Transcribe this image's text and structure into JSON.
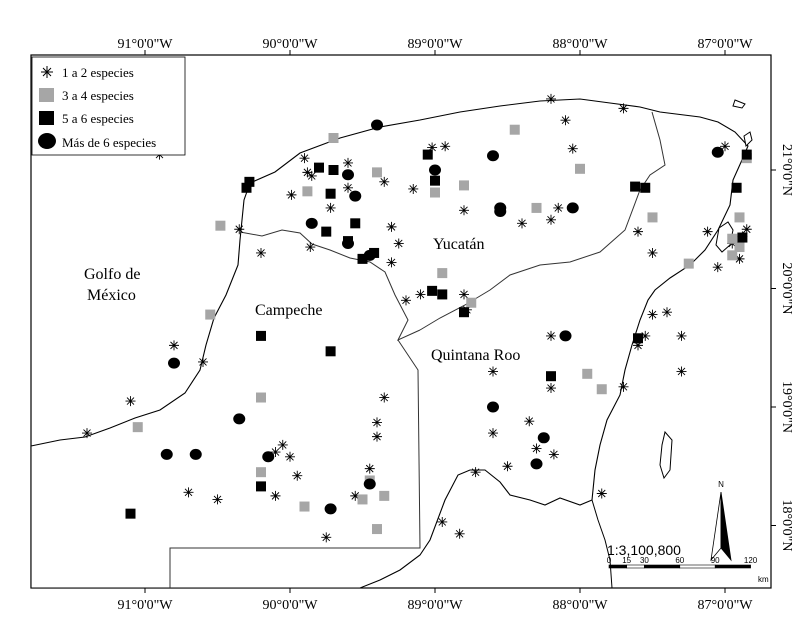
{
  "map": {
    "lon_labels": [
      {
        "lon": -91,
        "text": "91°0'0\"W"
      },
      {
        "lon": -90,
        "text": "90°0'0\"W"
      },
      {
        "lon": -89,
        "text": "89°0'0\"W"
      },
      {
        "lon": -88,
        "text": "88°0'0\"W"
      },
      {
        "lon": -87,
        "text": "87°0'0\"W"
      }
    ],
    "lat_labels": [
      {
        "lat": 21,
        "text": "21°0'0\"N"
      },
      {
        "lat": 20,
        "text": "20°0'0\"N"
      },
      {
        "lat": 19,
        "text": "19°0'0\"N"
      },
      {
        "lat": 18,
        "text": "18°0'0\"N"
      }
    ],
    "regions": {
      "gulf_line1": "Golfo de",
      "gulf_line2": "México",
      "campeche": "Campeche",
      "yucatan": "Yucatán",
      "quintana_roo": "Quintana Roo"
    },
    "legend": [
      {
        "key": "star",
        "label": "1 a 2 especies"
      },
      {
        "key": "grey",
        "label": "3 a 4 especies"
      },
      {
        "key": "black",
        "label": "5 a 6 especies"
      },
      {
        "key": "circle",
        "label": "Más de 6 especies"
      }
    ],
    "scale": {
      "ratio": "1:3,100,800",
      "ticks": [
        "0",
        "15",
        "30",
        "60",
        "90",
        "120"
      ],
      "unit": "km"
    },
    "north_label": "N",
    "colors": {
      "grey_marker": "#a6a6a6",
      "black_marker": "#000000",
      "coast": "#000000",
      "state_border": "#333333"
    },
    "sites": {
      "star": [
        [
          -90.9,
          21.13
        ],
        [
          -89.9,
          21.1
        ],
        [
          -89.88,
          20.98
        ],
        [
          -89.6,
          21.06
        ],
        [
          -89.85,
          20.95
        ],
        [
          -89.6,
          20.85
        ],
        [
          -89.35,
          20.9
        ],
        [
          -88.93,
          21.2
        ],
        [
          -88.05,
          21.18
        ],
        [
          -87.7,
          21.52
        ],
        [
          -88.2,
          21.6
        ],
        [
          -88.1,
          21.42
        ],
        [
          -89.02,
          21.19
        ],
        [
          -89.15,
          20.84
        ],
        [
          -88.8,
          20.66
        ],
        [
          -88.15,
          20.68
        ],
        [
          -88.2,
          20.58
        ],
        [
          -88.4,
          20.55
        ],
        [
          -89.99,
          20.79
        ],
        [
          -89.72,
          20.68
        ],
        [
          -89.3,
          20.52
        ],
        [
          -89.25,
          20.38
        ],
        [
          -89.86,
          20.35
        ],
        [
          -90.35,
          20.5
        ],
        [
          -90.2,
          20.3
        ],
        [
          -87.12,
          20.48
        ],
        [
          -86.95,
          20.38
        ],
        [
          -86.88,
          20.44
        ],
        [
          -86.85,
          20.5
        ],
        [
          -86.9,
          20.25
        ],
        [
          -87.6,
          20.48
        ],
        [
          -87.05,
          20.18
        ],
        [
          -88.8,
          19.95
        ],
        [
          -88.78,
          19.82
        ],
        [
          -89.2,
          19.9
        ],
        [
          -89.1,
          19.95
        ],
        [
          -87.55,
          19.6
        ],
        [
          -87.5,
          19.78
        ],
        [
          -87.4,
          19.8
        ],
        [
          -87.3,
          19.6
        ],
        [
          -87.6,
          19.52
        ],
        [
          -87.3,
          19.3
        ],
        [
          -87.7,
          19.17
        ],
        [
          -88.2,
          19.16
        ],
        [
          -88.2,
          19.6
        ],
        [
          -88.6,
          19.3
        ],
        [
          -88.35,
          18.88
        ],
        [
          -88.6,
          18.78
        ],
        [
          -88.3,
          18.65
        ],
        [
          -88.5,
          18.5
        ],
        [
          -88.72,
          18.45
        ],
        [
          -88.18,
          18.6
        ],
        [
          -87.85,
          18.27
        ],
        [
          -88.95,
          18.03
        ],
        [
          -88.83,
          17.93
        ],
        [
          -89.35,
          19.08
        ],
        [
          -89.4,
          18.87
        ],
        [
          -89.4,
          18.75
        ],
        [
          -89.45,
          18.48
        ],
        [
          -89.55,
          18.25
        ],
        [
          -89.75,
          17.9
        ],
        [
          -90.0,
          18.58
        ],
        [
          -90.1,
          18.62
        ],
        [
          -90.05,
          18.68
        ],
        [
          -90.1,
          18.25
        ],
        [
          -90.7,
          18.28
        ],
        [
          -90.5,
          18.22
        ],
        [
          -91.4,
          18.78
        ],
        [
          -91.1,
          19.05
        ],
        [
          -90.6,
          19.38
        ],
        [
          -90.8,
          19.52
        ],
        [
          -89.95,
          18.42
        ],
        [
          -89.3,
          20.22
        ],
        [
          -87.0,
          21.2
        ],
        [
          -87.5,
          20.3
        ]
      ],
      "grey": [
        [
          -89.7,
          21.27
        ],
        [
          -88.45,
          21.34
        ],
        [
          -89.4,
          20.98
        ],
        [
          -89.0,
          20.81
        ],
        [
          -88.8,
          20.87
        ],
        [
          -88.0,
          21.01
        ],
        [
          -88.3,
          20.68
        ],
        [
          -88.95,
          20.13
        ],
        [
          -90.48,
          20.53
        ],
        [
          -87.25,
          20.21
        ],
        [
          -86.9,
          20.6
        ],
        [
          -86.85,
          21.1
        ],
        [
          -86.95,
          20.42
        ],
        [
          -86.9,
          20.35
        ],
        [
          -86.95,
          20.28
        ],
        [
          -87.5,
          20.6
        ],
        [
          -87.95,
          19.28
        ],
        [
          -87.85,
          19.15
        ],
        [
          -88.75,
          19.88
        ],
        [
          -89.88,
          20.82
        ],
        [
          -90.55,
          19.78
        ],
        [
          -91.05,
          18.83
        ],
        [
          -90.2,
          19.08
        ],
        [
          -90.2,
          18.45
        ],
        [
          -89.9,
          18.16
        ],
        [
          -89.45,
          18.38
        ],
        [
          -89.35,
          18.25
        ],
        [
          -89.5,
          18.22
        ],
        [
          -89.4,
          17.97
        ]
      ],
      "black": [
        [
          -90.28,
          20.9
        ],
        [
          -90.3,
          20.85
        ],
        [
          -89.7,
          21.0
        ],
        [
          -89.75,
          20.48
        ],
        [
          -89.6,
          20.4
        ],
        [
          -89.42,
          20.3
        ],
        [
          -89.5,
          20.25
        ],
        [
          -89.55,
          20.55
        ],
        [
          -89.05,
          21.13
        ],
        [
          -89.0,
          20.91
        ],
        [
          -88.95,
          19.95
        ],
        [
          -88.8,
          19.8
        ],
        [
          -89.02,
          19.98
        ],
        [
          -87.62,
          20.86
        ],
        [
          -87.55,
          20.85
        ],
        [
          -86.92,
          20.85
        ],
        [
          -86.85,
          21.13
        ],
        [
          -86.88,
          20.43
        ],
        [
          -87.6,
          19.58
        ],
        [
          -88.2,
          19.26
        ],
        [
          -89.72,
          20.8
        ],
        [
          -90.2,
          19.6
        ],
        [
          -89.72,
          19.47
        ],
        [
          -90.2,
          18.33
        ],
        [
          -91.1,
          18.1
        ],
        [
          -89.8,
          21.02
        ]
      ],
      "circle": [
        [
          -89.4,
          21.38
        ],
        [
          -88.6,
          21.12
        ],
        [
          -88.55,
          20.68
        ],
        [
          -88.55,
          20.65
        ],
        [
          -88.05,
          20.68
        ],
        [
          -87.05,
          21.15
        ],
        [
          -89.6,
          20.96
        ],
        [
          -89.55,
          20.78
        ],
        [
          -89.6,
          20.38
        ],
        [
          -89.45,
          20.28
        ],
        [
          -89.85,
          20.55
        ],
        [
          -89.0,
          21.0
        ],
        [
          -88.1,
          19.6
        ],
        [
          -88.25,
          18.74
        ],
        [
          -88.3,
          18.52
        ],
        [
          -88.6,
          19.0
        ],
        [
          -90.8,
          19.37
        ],
        [
          -90.85,
          18.6
        ],
        [
          -90.65,
          18.6
        ],
        [
          -90.35,
          18.9
        ],
        [
          -89.45,
          18.35
        ],
        [
          -89.72,
          18.14
        ],
        [
          -90.15,
          18.58
        ]
      ]
    }
  }
}
